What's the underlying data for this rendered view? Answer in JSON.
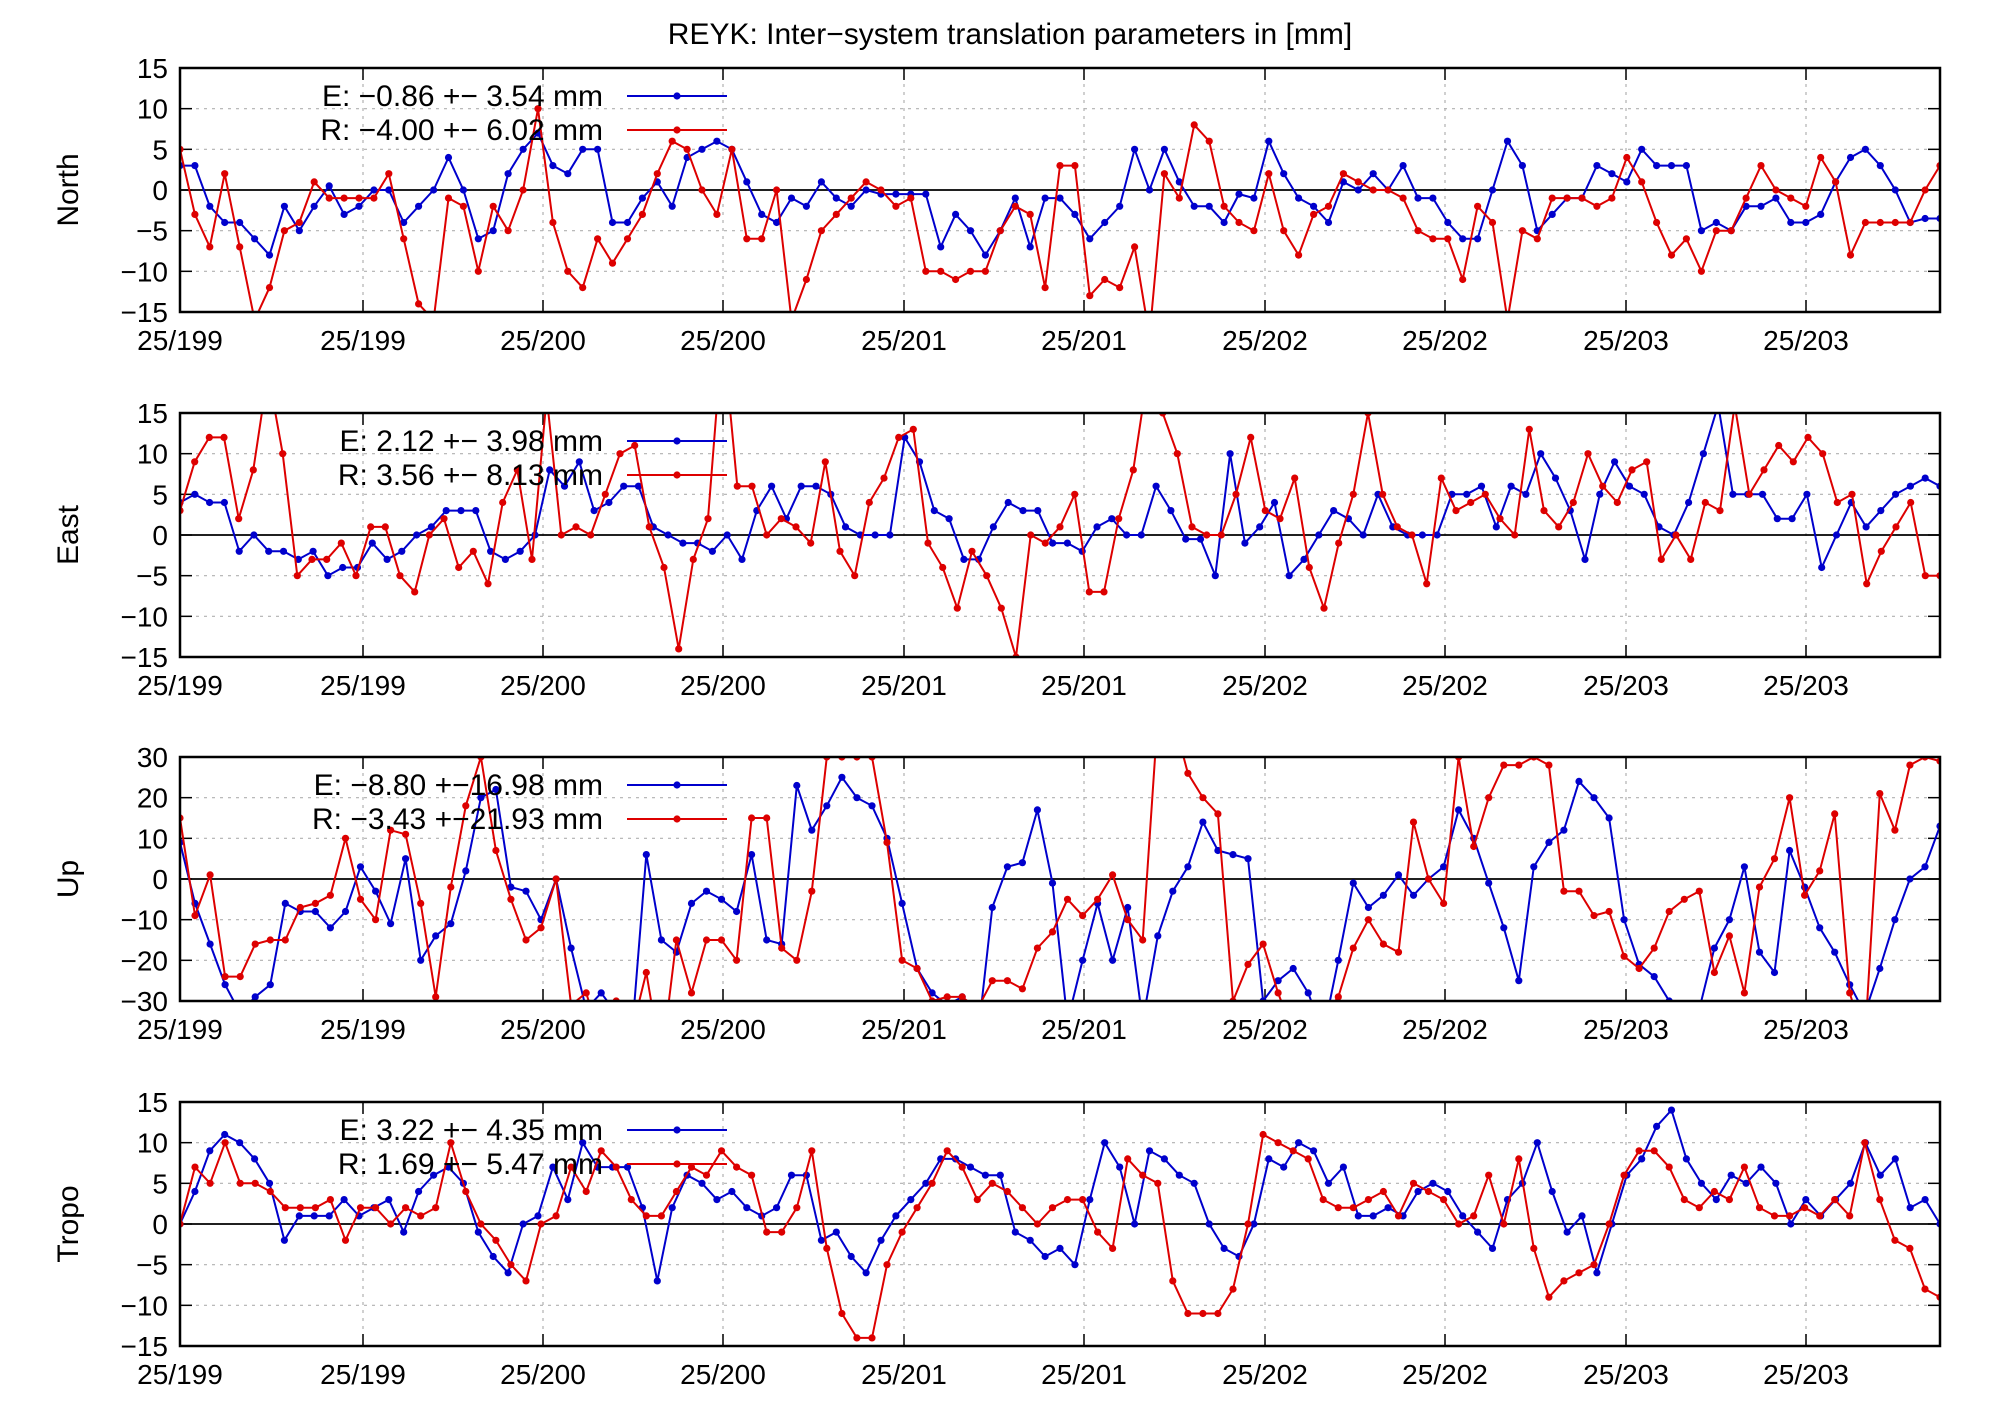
{
  "title": "REYK: Inter−system translation parameters in [mm]",
  "colors": {
    "E": "#0000cc",
    "R": "#dd0000",
    "grid": "#b0b0b0",
    "axis": "#000000"
  },
  "x_tick_labels": [
    "25/199",
    "25/199",
    "25/200",
    "25/200",
    "25/201",
    "25/201",
    "25/202",
    "25/202",
    "25/203",
    "25/203"
  ],
  "chart_data": [
    {
      "type": "line",
      "ylabel": "North",
      "ylim": [
        -15,
        15
      ],
      "yticks": [
        -15,
        -10,
        -5,
        0,
        5,
        10,
        15
      ],
      "grid": true,
      "legend_position": "top-left",
      "series": [
        {
          "name": "E",
          "legend": "E:  −0.86 +− 3.54 mm",
          "color": "#0000cc",
          "values": [
            3,
            3,
            -2,
            -4,
            -4,
            -6,
            -8,
            -2,
            -5,
            -2,
            0.5,
            -3,
            -2,
            0,
            0,
            -4,
            -2,
            0,
            4,
            0,
            -6,
            -5,
            2,
            5,
            7,
            3,
            2,
            5,
            5,
            -4,
            -4,
            -1,
            1,
            -2,
            4,
            5,
            6,
            5,
            1,
            -3,
            -4,
            -1,
            -2,
            1,
            -1,
            -2,
            0,
            -0.5,
            -0.5,
            -0.5,
            -0.5,
            -7,
            -3,
            -5,
            -8,
            -5,
            -1,
            -7,
            -1,
            -1,
            -3,
            -6,
            -4,
            -2,
            5,
            0,
            5,
            1,
            -2,
            -2,
            -4,
            -0.5,
            -1,
            6,
            2,
            -1,
            -2,
            -4,
            1,
            0,
            2,
            0,
            3,
            -1,
            -1,
            -4,
            -6,
            -6,
            0,
            6,
            3,
            -5,
            -3,
            -1,
            -1,
            3,
            2,
            1,
            5,
            3,
            3,
            3,
            -5,
            -4,
            -5,
            -2,
            -2,
            -1,
            -4,
            -4,
            -3,
            1,
            4,
            5,
            3,
            0,
            -4,
            -3.5,
            -3.5
          ]
        },
        {
          "name": "R",
          "legend": "R:  −4.00 +− 6.02 mm",
          "color": "#dd0000",
          "values": [
            5,
            -3,
            -7,
            2,
            -7,
            -16,
            -12,
            -5,
            -4,
            1,
            -1,
            -1,
            -1,
            -1,
            2,
            -6,
            -14,
            -16,
            -1,
            -2,
            -10,
            -2,
            -5,
            0,
            10,
            -4,
            -10,
            -12,
            -6,
            -9,
            -6,
            -3,
            2,
            6,
            5,
            0,
            -3,
            5,
            -6,
            -6,
            0,
            -16,
            -11,
            -5,
            -3,
            -1,
            1,
            0,
            -2,
            -1,
            -10,
            -10,
            -11,
            -10,
            -10,
            -5,
            -2,
            -3,
            -12,
            3,
            3,
            -13,
            -11,
            -12,
            -7,
            -18,
            2,
            -1,
            8,
            6,
            -2,
            -4,
            -5,
            2,
            -5,
            -8,
            -3,
            -2,
            2,
            1,
            0,
            0,
            -1,
            -5,
            -6,
            -6,
            -11,
            -2,
            -4,
            -16,
            -5,
            -6,
            -1,
            -1,
            -1,
            -2,
            -1,
            4,
            1,
            -4,
            -8,
            -6,
            -10,
            -5,
            -5,
            -1,
            3,
            0,
            -1,
            -2,
            4,
            1,
            -8,
            -4,
            -4,
            -4,
            -4,
            0,
            3
          ]
        }
      ]
    },
    {
      "type": "line",
      "ylabel": "East",
      "ylim": [
        -15,
        15
      ],
      "yticks": [
        -15,
        -10,
        -5,
        0,
        5,
        10,
        15
      ],
      "grid": true,
      "legend_position": "top-left",
      "series": [
        {
          "name": "E",
          "legend": "E:   2.12 +− 3.98 mm",
          "color": "#0000cc",
          "values": [
            4,
            5,
            4,
            4,
            -2,
            0,
            -2,
            -2,
            -3,
            -2,
            -5,
            -4,
            -4,
            -1,
            -3,
            -2,
            0,
            1,
            3,
            3,
            3,
            -2,
            -3,
            -2,
            0,
            8,
            6,
            9,
            3,
            4,
            6,
            6,
            1,
            0,
            -1,
            -1,
            -2,
            0,
            -3,
            3,
            6,
            2,
            6,
            6,
            5,
            1,
            0,
            0,
            0,
            12,
            9,
            3,
            2,
            -3,
            -3,
            1,
            4,
            3,
            3,
            -1,
            -1,
            -2,
            1,
            2,
            0,
            0,
            6,
            3,
            -0.5,
            -0.5,
            -5,
            10,
            -1,
            1,
            4,
            -5,
            -3,
            0,
            3,
            2,
            0,
            5,
            1,
            0,
            0,
            0,
            5,
            5,
            6,
            1,
            6,
            5,
            10,
            7,
            3,
            -3,
            5,
            9,
            6,
            5,
            1,
            0,
            4,
            10,
            16,
            5,
            5,
            5,
            2,
            2,
            5,
            -4,
            0,
            4,
            1,
            3,
            5,
            6,
            7,
            6
          ]
        },
        {
          "name": "R",
          "legend": "R:   3.56 +− 8.13 mm",
          "color": "#dd0000",
          "values": [
            3,
            9,
            12,
            12,
            2,
            8,
            20,
            10,
            -5,
            -3,
            -3,
            -1,
            -5,
            1,
            1,
            -5,
            -7,
            0,
            2,
            -4,
            -2,
            -6,
            4,
            8,
            -3,
            17,
            0,
            1,
            0,
            5,
            10,
            11,
            1,
            -4,
            -14,
            -3,
            2,
            25,
            6,
            6,
            0,
            2,
            1,
            -1,
            9,
            -2,
            -5,
            4,
            7,
            12,
            13,
            -1,
            -4,
            -9,
            -2,
            -5,
            -9,
            -15,
            0,
            -1,
            1,
            5,
            -7,
            -7,
            2,
            8,
            20,
            15,
            10,
            1,
            0,
            0,
            5,
            12,
            3,
            2,
            7,
            -4,
            -9,
            -1,
            5,
            15,
            5,
            1,
            0,
            -6,
            7,
            3,
            4,
            5,
            2,
            0,
            13,
            3,
            1,
            4,
            10,
            6,
            4,
            8,
            9,
            -3,
            0,
            -3,
            4,
            3,
            16,
            5,
            8,
            11,
            9,
            12,
            10,
            4,
            5,
            -6,
            -2,
            1,
            4,
            -5,
            -5
          ]
        }
      ]
    },
    {
      "type": "line",
      "ylabel": "Up",
      "ylim": [
        -30,
        30
      ],
      "yticks": [
        -30,
        -20,
        -10,
        0,
        10,
        20,
        30
      ],
      "grid": true,
      "legend_position": "top-left",
      "series": [
        {
          "name": "E",
          "legend": "E:  −8.80 +−16.98 mm",
          "color": "#0000cc",
          "values": [
            9,
            -6,
            -16,
            -26,
            -33,
            -29,
            -26,
            -6,
            -8,
            -8,
            -12,
            -8,
            3,
            -3,
            -11,
            5,
            -20,
            -14,
            -11,
            2,
            20,
            22,
            -2,
            -3,
            -10,
            0,
            -17,
            -32,
            -28,
            -33,
            -40,
            6,
            -15,
            -18,
            -6,
            -3,
            -5,
            -8,
            6,
            -15,
            -16,
            23,
            12,
            18,
            25,
            20,
            18,
            10,
            -6,
            -22,
            -28,
            -31,
            -29,
            -40,
            -7,
            3,
            4,
            17,
            -1,
            -35,
            -20,
            -6,
            -20,
            -7,
            -35,
            -14,
            -3,
            3,
            14,
            7,
            6,
            5,
            -30,
            -25,
            -22,
            -28,
            -38,
            -20,
            -1,
            -7,
            -4,
            1,
            -4,
            0,
            3,
            17,
            10,
            -1,
            -12,
            -25,
            3,
            9,
            12,
            24,
            20,
            15,
            -10,
            -21,
            -24,
            -30,
            -40,
            -32,
            -17,
            -10,
            3,
            -18,
            -23,
            7,
            -2,
            -12,
            -18,
            -26,
            -33,
            -22,
            -10,
            0,
            3,
            13
          ]
        },
        {
          "name": "R",
          "legend": "R:  −3.43 +−21.93 mm",
          "color": "#dd0000",
          "values": [
            15,
            -9,
            1,
            -24,
            -24,
            -16,
            -15,
            -15,
            -7,
            -6,
            -4,
            10,
            -5,
            -10,
            12,
            11,
            -6,
            -29,
            -2,
            18,
            30,
            7,
            -5,
            -15,
            -12,
            0,
            -31,
            -28,
            -40,
            -30,
            -38,
            -23,
            -45,
            -15,
            -28,
            -15,
            -15,
            -20,
            15,
            15,
            -17,
            -20,
            -3,
            30,
            30,
            30,
            30,
            9,
            -20,
            -22,
            -30,
            -29,
            -29,
            -32,
            -25,
            -25,
            -27,
            -17,
            -13,
            -5,
            -9,
            -5,
            1,
            -10,
            -15,
            40,
            40,
            26,
            20,
            16,
            -30,
            -21,
            -16,
            -28,
            -38,
            -33,
            -34,
            -29,
            -17,
            -10,
            -16,
            -18,
            14,
            0,
            -6,
            30,
            8,
            20,
            28,
            28,
            30,
            28,
            -3,
            -3,
            -9,
            -8,
            -19,
            -22,
            -17,
            -8,
            -5,
            -3,
            -23,
            -14,
            -28,
            -2,
            5,
            20,
            -4,
            2,
            16,
            -28,
            -40,
            21,
            12,
            28,
            30,
            29
          ]
        }
      ]
    },
    {
      "type": "line",
      "ylabel": "Tropo",
      "ylim": [
        -15,
        15
      ],
      "yticks": [
        -15,
        -10,
        -5,
        0,
        5,
        10,
        15
      ],
      "grid": true,
      "legend_position": "top-left",
      "series": [
        {
          "name": "E",
          "legend": "E:   3.22 +− 4.35 mm",
          "color": "#0000cc",
          "values": [
            0,
            4,
            9,
            11,
            10,
            8,
            5,
            -2,
            1,
            1,
            1,
            3,
            1,
            2,
            3,
            -1,
            4,
            6,
            7,
            5,
            -1,
            -4,
            -6,
            0,
            1,
            7,
            3,
            10,
            7,
            7,
            7,
            2,
            -7,
            2,
            6,
            5,
            3,
            4,
            2,
            1,
            2,
            6,
            6,
            -2,
            -1,
            -4,
            -6,
            -2,
            1,
            3,
            5,
            8,
            8,
            7,
            6,
            6,
            -1,
            -2,
            -4,
            -3,
            -5,
            3,
            10,
            7,
            0,
            9,
            8,
            6,
            5,
            0,
            -3,
            -4,
            0,
            8,
            7,
            10,
            9,
            5,
            7,
            1,
            1,
            2,
            1,
            4,
            5,
            4,
            1,
            -1,
            -3,
            3,
            5,
            10,
            4,
            -1,
            1,
            -6,
            0,
            6,
            8,
            12,
            14,
            8,
            5,
            3,
            6,
            5,
            7,
            5,
            0,
            3,
            1,
            3,
            5,
            10,
            6,
            8,
            2,
            3,
            0
          ]
        },
        {
          "name": "R",
          "legend": "R:   1.69 +− 5.47 mm",
          "color": "#dd0000",
          "values": [
            0,
            7,
            5,
            10,
            5,
            5,
            4,
            2,
            2,
            2,
            3,
            -2,
            2,
            2,
            0,
            2,
            1,
            2,
            10,
            4,
            0,
            -2,
            -5,
            -7,
            0,
            1,
            7,
            4,
            9,
            7,
            3,
            1,
            1,
            4,
            7,
            6,
            9,
            7,
            6,
            -1,
            -1,
            2,
            9,
            -3,
            -11,
            -14,
            -14,
            -5,
            -1,
            2,
            5,
            9,
            7,
            3,
            5,
            4,
            2,
            0,
            2,
            3,
            3,
            -1,
            -3,
            8,
            6,
            5,
            -7,
            -11,
            -11,
            -11,
            -8,
            0,
            11,
            10,
            9,
            8,
            3,
            2,
            2,
            3,
            4,
            1,
            5,
            4,
            3,
            0,
            1,
            6,
            0,
            8,
            -3,
            -9,
            -7,
            -6,
            -5,
            0,
            6,
            9,
            9,
            7,
            3,
            2,
            4,
            3,
            7,
            2,
            1,
            1,
            2,
            1,
            3,
            1,
            10,
            3,
            -2,
            -3,
            -8,
            -9
          ]
        }
      ]
    }
  ]
}
